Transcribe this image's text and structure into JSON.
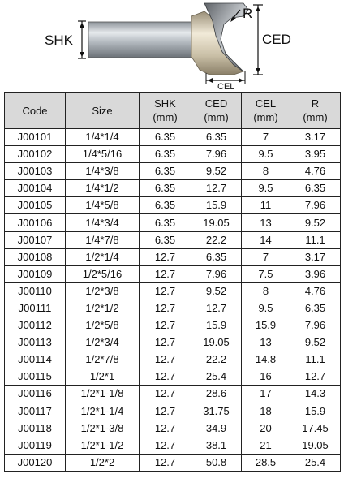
{
  "figure": {
    "labels": {
      "shk": "SHK",
      "r": "R",
      "ced": "CED",
      "cel": "CEL"
    }
  },
  "table": {
    "headers": [
      {
        "line1": "Code",
        "line2": ""
      },
      {
        "line1": "Size",
        "line2": ""
      },
      {
        "line1": "SHK",
        "line2": "(mm)"
      },
      {
        "line1": "CED",
        "line2": "(mm)"
      },
      {
        "line1": "CEL",
        "line2": "(mm)"
      },
      {
        "line1": "R",
        "line2": "(mm)"
      }
    ],
    "rows": [
      [
        "J00101",
        "1/4*1/4",
        "6.35",
        "6.35",
        "7",
        "3.17"
      ],
      [
        "J00102",
        "1/4*5/16",
        "6.35",
        "7.96",
        "9.5",
        "3.95"
      ],
      [
        "J00103",
        "1/4*3/8",
        "6.35",
        "9.52",
        "8",
        "4.76"
      ],
      [
        "J00104",
        "1/4*1/2",
        "6.35",
        "12.7",
        "9.5",
        "6.35"
      ],
      [
        "J00105",
        "1/4*5/8",
        "6.35",
        "15.9",
        "11",
        "7.96"
      ],
      [
        "J00106",
        "1/4*3/4",
        "6.35",
        "19.05",
        "13",
        "9.52"
      ],
      [
        "J00107",
        "1/4*7/8",
        "6.35",
        "22.2",
        "14",
        "11.1"
      ],
      [
        "J00108",
        "1/2*1/4",
        "12.7",
        "6.35",
        "7",
        "3.17"
      ],
      [
        "J00109",
        "1/2*5/16",
        "12.7",
        "7.96",
        "7.5",
        "3.96"
      ],
      [
        "J00110",
        "1/2*3/8",
        "12.7",
        "9.52",
        "8",
        "4.76"
      ],
      [
        "J00111",
        "1/2*1/2",
        "12.7",
        "12.7",
        "9.5",
        "6.35"
      ],
      [
        "J00112",
        "1/2*5/8",
        "12.7",
        "15.9",
        "15.9",
        "7.96"
      ],
      [
        "J00113",
        "1/2*3/4",
        "12.7",
        "19.05",
        "13",
        "9.52"
      ],
      [
        "J00114",
        "1/2*7/8",
        "12.7",
        "22.2",
        "14.8",
        "11.1"
      ],
      [
        "J00115",
        "1/2*1",
        "12.7",
        "25.4",
        "16",
        "12.7"
      ],
      [
        "J00116",
        "1/2*1-1/8",
        "12.7",
        "28.6",
        "17",
        "14.3"
      ],
      [
        "J00117",
        "1/2*1-1/4",
        "12.7",
        "31.75",
        "18",
        "15.9"
      ],
      [
        "J00118",
        "1/2*1-3/8",
        "12.7",
        "34.9",
        "20",
        "17.45"
      ],
      [
        "J00119",
        "1/2*1-1/2",
        "12.7",
        "38.1",
        "21",
        "19.05"
      ],
      [
        "J00120",
        "1/2*2",
        "12.7",
        "50.8",
        "28.5",
        "25.4"
      ]
    ]
  }
}
